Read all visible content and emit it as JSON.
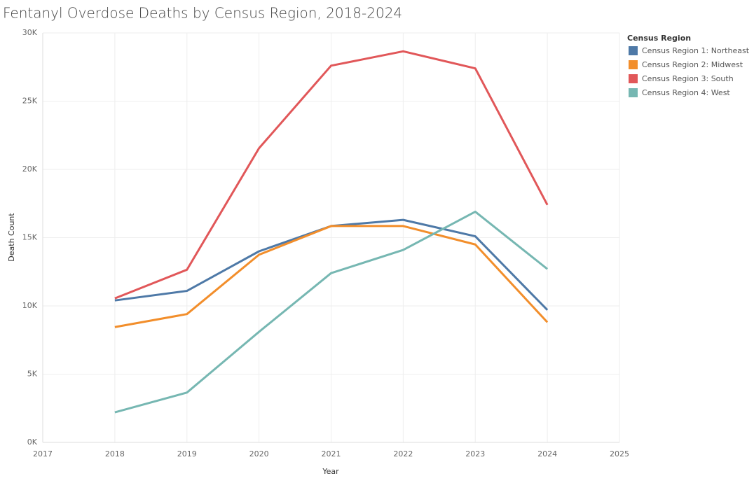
{
  "chart_data": {
    "type": "line",
    "title": "Fentanyl Overdose Deaths by Census Region, 2018-2024",
    "x_label": "Year",
    "y_label": "Death Count",
    "legend_title": "Census Region",
    "legend_position": "right",
    "grid": true,
    "x": [
      2018,
      2019,
      2020,
      2021,
      2022,
      2023,
      2024
    ],
    "xlim": [
      2017,
      2025
    ],
    "xticks": [
      2017,
      2018,
      2019,
      2020,
      2021,
      2022,
      2023,
      2024,
      2025
    ],
    "ylim": [
      0,
      30000
    ],
    "yticks": [
      {
        "value": 0,
        "label": "0K"
      },
      {
        "value": 5000,
        "label": "5K"
      },
      {
        "value": 10000,
        "label": "10K"
      },
      {
        "value": 15000,
        "label": "15K"
      },
      {
        "value": 20000,
        "label": "20K"
      },
      {
        "value": 25000,
        "label": "25K"
      },
      {
        "value": 30000,
        "label": "30K"
      }
    ],
    "series": [
      {
        "name": "Census Region 1: Northeast",
        "color": "#4e79a7",
        "values": [
          10400,
          11100,
          14000,
          15850,
          16300,
          15100,
          9700
        ]
      },
      {
        "name": "Census Region 2: Midwest",
        "color": "#f28e2b",
        "values": [
          8450,
          9400,
          13750,
          15850,
          15850,
          14500,
          8800
        ]
      },
      {
        "name": "Census Region 3: South",
        "color": "#e15759",
        "values": [
          10550,
          12650,
          21550,
          27600,
          28650,
          27400,
          17400
        ]
      },
      {
        "name": "Census Region 4: West",
        "color": "#76b7b2",
        "values": [
          2200,
          3650,
          8100,
          12400,
          14100,
          16900,
          12700
        ]
      }
    ]
  }
}
